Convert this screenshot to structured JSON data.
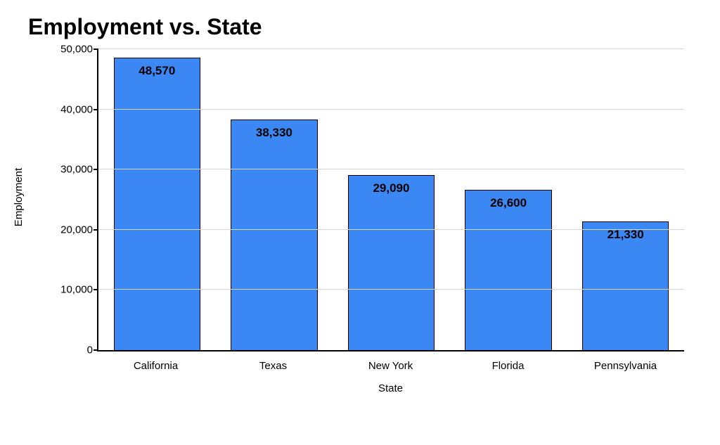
{
  "chart": {
    "type": "bar",
    "title": "Employment  vs. State",
    "title_fontsize": 32,
    "title_fontweight": "bold",
    "title_color": "#000000",
    "xlabel": "State",
    "ylabel": "Employment",
    "axis_label_fontsize": 15,
    "axis_label_color": "#000000",
    "tick_label_fontsize": 15,
    "tick_label_color": "#000000",
    "value_label_fontsize": 17,
    "value_label_fontweight": "bold",
    "value_label_color": "#000000",
    "background_color": "#ffffff",
    "axis_line_color": "#000000",
    "axis_line_width": 2,
    "grid_color": "#d6d6d6",
    "grid": true,
    "bar_color": "#3b87f4",
    "bar_border_color": "#000000",
    "bar_border_width": 1,
    "bar_width": 0.74,
    "ylim": [
      0,
      50000
    ],
    "ytick_step": 10000,
    "yticks": [
      {
        "value": 0,
        "label": "0"
      },
      {
        "value": 10000,
        "label": "10,000"
      },
      {
        "value": 20000,
        "label": "20,000"
      },
      {
        "value": 30000,
        "label": "30,000"
      },
      {
        "value": 40000,
        "label": "40,000"
      },
      {
        "value": 50000,
        "label": "50,000"
      }
    ],
    "categories": [
      "California",
      "Texas",
      "New York",
      "Florida",
      "Pennsylvania"
    ],
    "values": [
      48570,
      38330,
      29090,
      26600,
      21330
    ],
    "value_labels": [
      "48,570",
      "38,330",
      "29,090",
      "26,600",
      "21,330"
    ]
  }
}
